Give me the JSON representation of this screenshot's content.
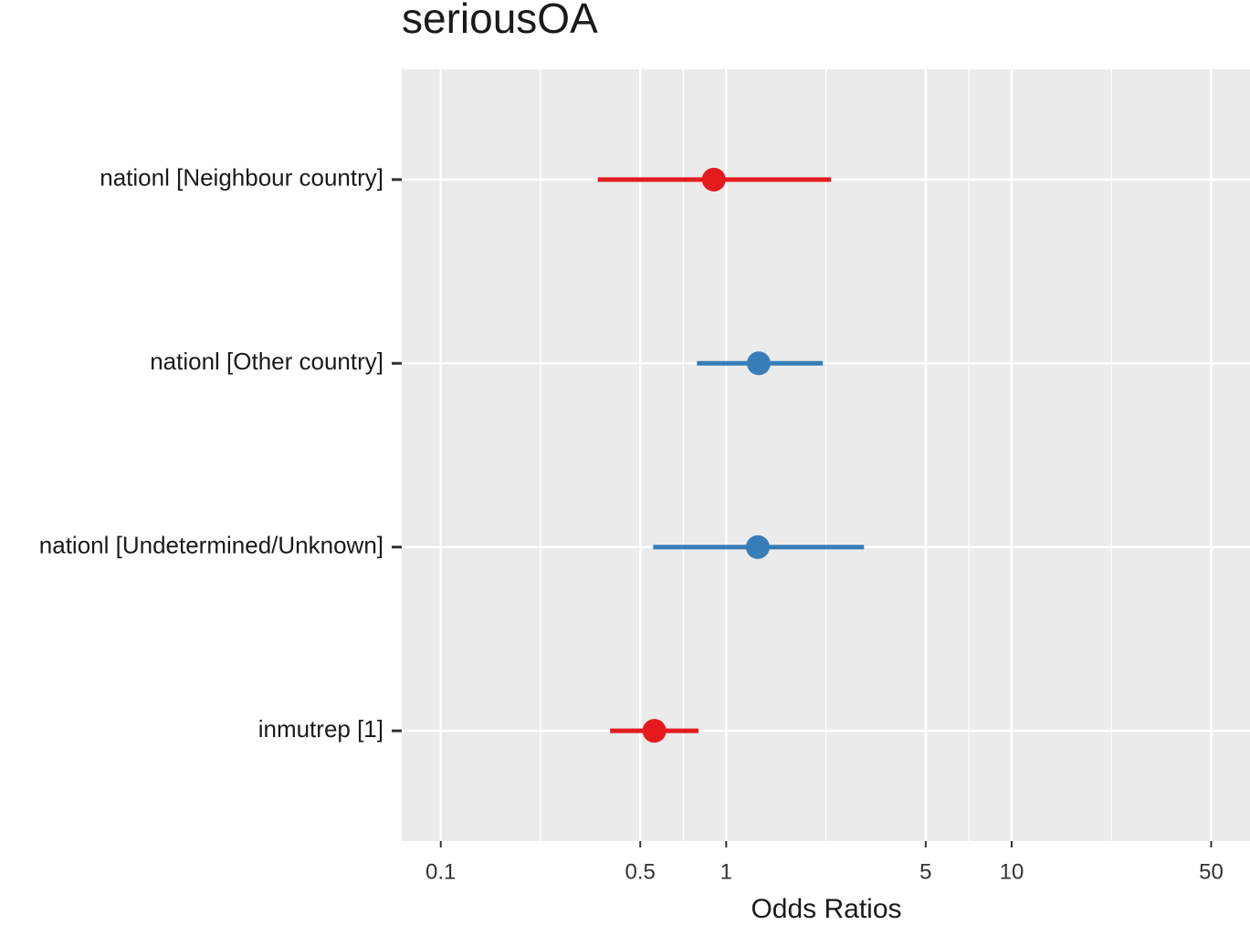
{
  "chart_data": {
    "type": "forest",
    "title": "seriousOA",
    "x_label": "Odds Ratios",
    "categories": [
      "nationl [Neighbour country]",
      "nationl [Other country]",
      "nationl [Undetermined/Unknown]",
      "inmutrep [1]"
    ],
    "values": [
      0.905,
      1.3,
      1.29,
      0.56
    ],
    "ci_low": [
      0.355,
      0.79,
      0.555,
      0.392
    ],
    "ci_high": [
      2.33,
      2.18,
      3.04,
      0.8
    ],
    "colors": [
      "#e41a1c",
      "#377eb8",
      "#377eb8",
      "#e41a1c"
    ],
    "xlim": [
      0.073,
      68.4
    ],
    "xticks": [
      0.1,
      0.5,
      1,
      5,
      10,
      50
    ],
    "log_x": true,
    "grid": true
  }
}
